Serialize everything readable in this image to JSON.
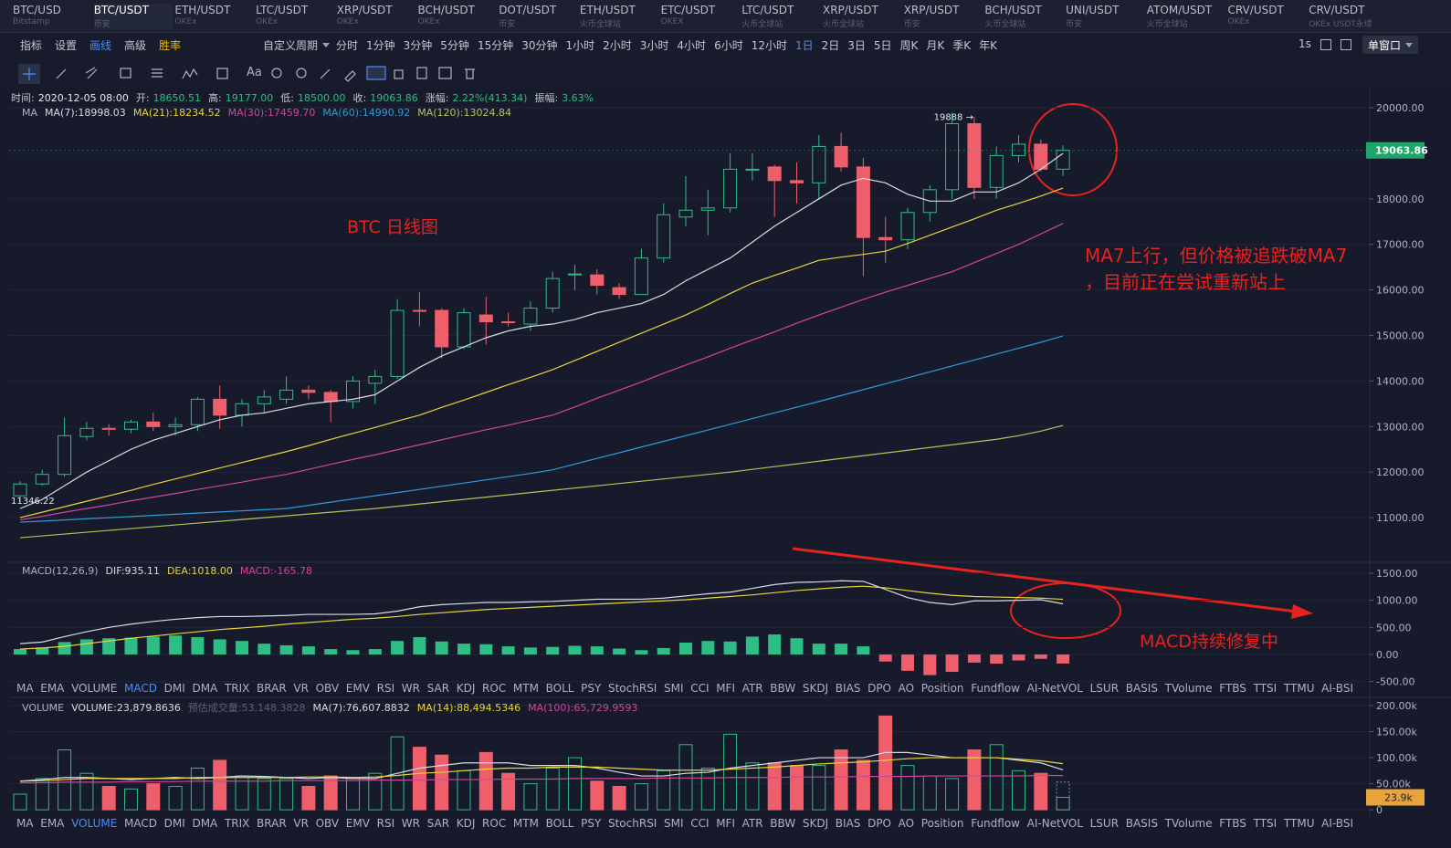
{
  "tabs": [
    {
      "name": "BTC/USD",
      "sub": "Bitstamp"
    },
    {
      "name": "BTC/USDT",
      "sub": "币安"
    },
    {
      "name": "ETH/USDT",
      "sub": "OKEx"
    },
    {
      "name": "LTC/USDT",
      "sub": "OKEx"
    },
    {
      "name": "XRP/USDT",
      "sub": "OKEx"
    },
    {
      "name": "BCH/USDT",
      "sub": "OKEx"
    },
    {
      "name": "DOT/USDT",
      "sub": "币安"
    },
    {
      "name": "ETH/USDT",
      "sub": "火币全球站"
    },
    {
      "name": "ETC/USDT",
      "sub": "OKEX"
    },
    {
      "name": "LTC/USDT",
      "sub": "火币全球站"
    },
    {
      "name": "XRP/USDT",
      "sub": "火币全球站"
    },
    {
      "name": "XRP/USDT",
      "sub": "币安"
    },
    {
      "name": "BCH/USDT",
      "sub": "火币全球站"
    },
    {
      "name": "UNI/USDT",
      "sub": "币安"
    },
    {
      "name": "ATOM/USDT",
      "sub": "火币全球站"
    },
    {
      "name": "CRV/USDT",
      "sub": "OKEx"
    },
    {
      "name": "CRV/USDT",
      "sub": "OKEx USDT永续"
    }
  ],
  "active_tab": 1,
  "toolbar": {
    "tools": [
      "指标",
      "设置",
      "画线",
      "高级",
      "胜率"
    ],
    "custom_period": "自定义周期",
    "periods": [
      "分时",
      "1分钟",
      "3分钟",
      "5分钟",
      "15分钟",
      "30分钟",
      "1小时",
      "2小时",
      "3小时",
      "4小时",
      "6小时",
      "12小时",
      "1日",
      "2日",
      "3日",
      "5日",
      "周K",
      "月K",
      "季K",
      "年K"
    ],
    "active_period": 12,
    "refresh": "1s",
    "window": "单窗口",
    "text_tool": "Aa"
  },
  "info": [
    {
      "label": "时间:",
      "value": "2020-12-05 08:00"
    },
    {
      "label": "开:",
      "value": "18650.51"
    },
    {
      "label": "高:",
      "value": "19177.00"
    },
    {
      "label": "低:",
      "value": "18500.00"
    },
    {
      "label": "收:",
      "value": "19063.86"
    },
    {
      "label": "涨幅:",
      "value": "2.22%(413.34)"
    },
    {
      "label": "振幅:",
      "value": "3.63%"
    }
  ],
  "main": {
    "label": "MA",
    "ylim": [
      10040,
      20361
    ],
    "yticks": [
      {
        "value": 20000,
        "label": "20000.00"
      },
      {
        "value": 19000,
        "label": "19000.00"
      },
      {
        "value": 18000,
        "label": "18000.00"
      },
      {
        "value": 17000,
        "label": "17000.00"
      },
      {
        "value": 16000,
        "label": "16000.00"
      },
      {
        "value": 15000,
        "label": "15000.00"
      },
      {
        "value": 14000,
        "label": "14000.00"
      },
      {
        "value": 13000,
        "label": "13000.00"
      },
      {
        "value": 12000,
        "label": "12000.00"
      },
      {
        "value": 11000,
        "label": "11000.00"
      }
    ],
    "grid": true,
    "up_color": "#2ebd85",
    "down_color": "#ef5f6b",
    "candles": {
      "open": [
        11480,
        11740,
        11950,
        12780,
        12960,
        12940,
        13100,
        13000,
        13040,
        13600,
        13250,
        13500,
        13600,
        13800,
        13750,
        13550,
        13950,
        14100,
        15550,
        15550,
        14750,
        15450,
        15300,
        15250,
        15600,
        16330,
        16330,
        16050,
        15900,
        16700,
        17600,
        17750,
        17800,
        18650,
        18700,
        18400,
        18350,
        19150,
        18700,
        17150,
        17100,
        17700,
        18200,
        19650,
        18250,
        18950,
        19200,
        18650.51
      ],
      "high": [
        11800,
        12050,
        13200,
        13100,
        13050,
        13150,
        13300,
        13200,
        13650,
        13900,
        13600,
        13800,
        14100,
        13900,
        13800,
        14100,
        14250,
        15800,
        15950,
        15600,
        15600,
        15850,
        15500,
        15750,
        16400,
        16550,
        16450,
        16150,
        16900,
        17900,
        18500,
        18200,
        19000,
        19000,
        18750,
        18800,
        19400,
        19450,
        18900,
        17600,
        17800,
        18300,
        19888,
        19800,
        19150,
        19400,
        19300,
        19177
      ],
      "low": [
        11346.22,
        11700,
        11900,
        12700,
        12800,
        12850,
        12900,
        12800,
        12900,
        12950,
        13000,
        13300,
        13500,
        13600,
        13100,
        13400,
        13500,
        14050,
        15200,
        14500,
        14700,
        14800,
        15200,
        15100,
        15500,
        16000,
        15900,
        15800,
        15900,
        16600,
        17400,
        17200,
        17700,
        18400,
        17600,
        17900,
        18000,
        18600,
        16300,
        16600,
        16900,
        17500,
        18000,
        18000,
        18000,
        18800,
        18600,
        18500
      ],
      "close": [
        11740,
        11950,
        12800,
        12960,
        12940,
        13100,
        13000,
        13040,
        13600,
        13250,
        13500,
        13650,
        13800,
        13750,
        13550,
        14000,
        14100,
        15550,
        15540,
        14750,
        15500,
        15300,
        15280,
        15600,
        16250,
        16350,
        16100,
        15900,
        16700,
        17650,
        17750,
        17800,
        18650,
        18650,
        18400,
        18350,
        19150,
        18700,
        17150,
        17100,
        17700,
        18200,
        19650,
        18250,
        18950,
        19200,
        18650,
        19063.86
      ]
    },
    "ma_lines": [
      {
        "legend": "MA(7):18998.03",
        "color": "#d9dce4",
        "values": [
          11200,
          11400,
          11700,
          12000,
          12250,
          12500,
          12700,
          12850,
          13000,
          13150,
          13250,
          13300,
          13400,
          13500,
          13550,
          13600,
          13700,
          14000,
          14300,
          14550,
          14750,
          14950,
          15100,
          15200,
          15250,
          15350,
          15500,
          15600,
          15700,
          15900,
          16200,
          16450,
          16700,
          17050,
          17400,
          17700,
          18000,
          18300,
          18450,
          18350,
          18100,
          17950,
          17950,
          18150,
          18150,
          18350,
          18650,
          18998.03
        ]
      },
      {
        "legend": "MA(21):18234.52",
        "color": "#e8d53a",
        "values": [
          11000,
          11120,
          11240,
          11360,
          11480,
          11600,
          11730,
          11850,
          11970,
          12090,
          12210,
          12330,
          12450,
          12580,
          12720,
          12850,
          12980,
          13120,
          13250,
          13420,
          13580,
          13750,
          13920,
          14080,
          14250,
          14450,
          14650,
          14850,
          15050,
          15250,
          15450,
          15680,
          15920,
          16150,
          16320,
          16480,
          16650,
          16720,
          16780,
          16850,
          17020,
          17200,
          17380,
          17560,
          17750,
          17900,
          18060,
          18234.52
        ]
      },
      {
        "legend": "MA(30):17459.70",
        "color": "#d2449e",
        "values": [
          10950,
          11030,
          11120,
          11200,
          11280,
          11370,
          11450,
          11530,
          11620,
          11700,
          11780,
          11870,
          11950,
          12060,
          12170,
          12280,
          12380,
          12490,
          12600,
          12710,
          12820,
          12930,
          13030,
          13140,
          13250,
          13430,
          13620,
          13800,
          13980,
          14170,
          14350,
          14530,
          14720,
          14900,
          15080,
          15270,
          15450,
          15620,
          15790,
          15950,
          16100,
          16250,
          16400,
          16600,
          16800,
          17000,
          17230,
          17459.7
        ]
      },
      {
        "legend": "MA(60):14990.92",
        "color": "#2f9bd8",
        "values": [
          10900,
          10925,
          10950,
          10975,
          11000,
          11025,
          11050,
          11075,
          11100,
          11125,
          11150,
          11175,
          11200,
          11270,
          11340,
          11410,
          11480,
          11550,
          11620,
          11690,
          11760,
          11830,
          11900,
          11970,
          12050,
          12175,
          12300,
          12425,
          12550,
          12675,
          12800,
          12925,
          13050,
          13175,
          13300,
          13425,
          13550,
          13680,
          13810,
          13940,
          14070,
          14200,
          14330,
          14460,
          14590,
          14720,
          14850,
          14990.92
        ]
      },
      {
        "legend": "MA(120):13024.84",
        "color": "#b5c45a",
        "values": [
          10560,
          10600,
          10640,
          10680,
          10720,
          10760,
          10800,
          10840,
          10880,
          10920,
          10960,
          11000,
          11040,
          11080,
          11120,
          11160,
          11200,
          11250,
          11300,
          11350,
          11400,
          11450,
          11500,
          11550,
          11600,
          11650,
          11700,
          11750,
          11800,
          11850,
          11900,
          11950,
          12000,
          12060,
          12120,
          12180,
          12240,
          12300,
          12360,
          12420,
          12480,
          12540,
          12600,
          12660,
          12720,
          12800,
          12900,
          13024.84
        ]
      }
    ],
    "high_label": "19888 →",
    "low_label": "11346.22",
    "price_tag": 19063.86,
    "price_tag_label": "19063.86"
  },
  "annotations": {
    "title": "BTC  日线图",
    "note_1": "MA7上行，但价格被追跌破MA7",
    "note_2": "，目前正在尝试重新站上",
    "macd_note": "MACD持续修复中",
    "color": "#e8231f"
  },
  "macd": {
    "title": "MACD(12,26,9)",
    "dif_label": "DIF:935.11",
    "dea_label": "DEA:1018.00",
    "macd_label": "MACD:-165.78",
    "ylim": [
      -471,
      1684
    ],
    "yticks": [
      {
        "value": 1500,
        "label": "1500.00"
      },
      {
        "value": 1000,
        "label": "1000.00"
      },
      {
        "value": 500,
        "label": "500.00"
      },
      {
        "value": 0,
        "label": "0.00"
      },
      {
        "value": -500,
        "label": "-500.00"
      }
    ],
    "dif": [
      200,
      230,
      330,
      420,
      500,
      560,
      610,
      650,
      680,
      700,
      700,
      710,
      720,
      740,
      740,
      740,
      750,
      800,
      880,
      920,
      940,
      960,
      960,
      970,
      980,
      1000,
      1020,
      1020,
      1020,
      1040,
      1080,
      1120,
      1150,
      1220,
      1290,
      1330,
      1340,
      1360,
      1350,
      1200,
      1050,
      960,
      920,
      990,
      990,
      1000,
      1010,
      935.11
    ],
    "dea": [
      100,
      120,
      150,
      200,
      250,
      300,
      340,
      380,
      420,
      460,
      490,
      520,
      560,
      590,
      620,
      650,
      670,
      700,
      740,
      770,
      800,
      830,
      850,
      870,
      890,
      910,
      930,
      950,
      970,
      990,
      1010,
      1040,
      1070,
      1100,
      1140,
      1180,
      1210,
      1240,
      1260,
      1230,
      1180,
      1130,
      1090,
      1070,
      1060,
      1050,
      1040,
      1018
    ],
    "hist": [
      100,
      130,
      230,
      280,
      300,
      310,
      330,
      350,
      320,
      280,
      250,
      200,
      170,
      150,
      100,
      80,
      100,
      250,
      320,
      240,
      200,
      190,
      150,
      130,
      140,
      160,
      150,
      110,
      80,
      120,
      220,
      250,
      240,
      330,
      370,
      300,
      200,
      200,
      150,
      -130,
      -300,
      -380,
      -320,
      -150,
      -170,
      -110,
      -80,
      -165.78
    ]
  },
  "volume": {
    "title": "VOLUME",
    "vol_label": "VOLUME:23,879.8636",
    "pred_label": "预估成交量:53,148.3828",
    "ma7_label": "MA(7):76,607.8832",
    "ma14_label": "MA(14):88,494.5346",
    "ma100_label": "MA(100):65,729.9593",
    "ylim": [
      -5000,
      214000
    ],
    "yticks": [
      {
        "value": 200000,
        "label": "200.00k"
      },
      {
        "value": 150000,
        "label": "150.00k"
      },
      {
        "value": 100000,
        "label": "100.00k"
      },
      {
        "value": 50000,
        "label": "50.00k"
      },
      0
    ],
    "values": [
      30000,
      60000,
      115000,
      70000,
      45000,
      40000,
      50000,
      45000,
      80000,
      95000,
      65000,
      60000,
      60000,
      45000,
      65000,
      60000,
      70000,
      140000,
      120000,
      105000,
      75000,
      110000,
      70000,
      50000,
      80000,
      100000,
      55000,
      45000,
      50000,
      75000,
      125000,
      80000,
      145000,
      90000,
      90000,
      85000,
      85000,
      115000,
      95000,
      180000,
      85000,
      65000,
      60000,
      115000,
      125000,
      75000,
      70000,
      23879.8636
    ],
    "predicted": 53148.3828,
    "tag": 23879.8636,
    "tag_label": "23.9k",
    "ma_lines": [
      {
        "color": "#d9dce4",
        "values": [
          55000,
          58000,
          62000,
          62000,
          60000,
          58000,
          60000,
          62000,
          60000,
          62000,
          65000,
          64000,
          62000,
          60000,
          62000,
          60000,
          60000,
          70000,
          80000,
          85000,
          90000,
          90000,
          90000,
          85000,
          85000,
          85000,
          80000,
          72000,
          65000,
          65000,
          70000,
          72000,
          80000,
          85000,
          90000,
          95000,
          100000,
          100000,
          100000,
          110000,
          110000,
          105000,
          100000,
          100000,
          100000,
          95000,
          90000,
          76607.8832
        ]
      },
      {
        "color": "#e8d53a",
        "values": [
          55000,
          56000,
          58000,
          60000,
          60000,
          60000,
          60000,
          60000,
          62000,
          62000,
          62000,
          62000,
          62000,
          63000,
          63000,
          62000,
          63000,
          66000,
          70000,
          72000,
          75000,
          78000,
          80000,
          80000,
          82000,
          82000,
          82000,
          80000,
          78000,
          76000,
          76000,
          76000,
          78000,
          80000,
          82000,
          85000,
          88000,
          90000,
          92000,
          95000,
          98000,
          100000,
          100000,
          100000,
          100000,
          97000,
          94000,
          88494.5346
        ]
      },
      {
        "color": "#d2449e",
        "values": [
          52000,
          52000,
          53000,
          53000,
          53000,
          54000,
          54000,
          54000,
          55000,
          55000,
          55000,
          55000,
          56000,
          56000,
          56000,
          56000,
          57000,
          57000,
          57000,
          58000,
          58000,
          58000,
          59000,
          59000,
          59000,
          60000,
          60000,
          60000,
          60000,
          61000,
          61000,
          61000,
          62000,
          62000,
          62000,
          63000,
          63000,
          63000,
          64000,
          64000,
          64000,
          65000,
          65000,
          65000,
          65000,
          65000,
          66000,
          65729.9593
        ]
      }
    ]
  },
  "indicator_tabs": [
    "MA",
    "EMA",
    "VOLUME",
    "MACD",
    "DMI",
    "DMA",
    "TRIX",
    "BRAR",
    "VR",
    "OBV",
    "EMV",
    "RSI",
    "WR",
    "SAR",
    "KDJ",
    "ROC",
    "MTM",
    "BOLL",
    "PSY",
    "StochRSI",
    "SMI",
    "CCI",
    "MFI",
    "ATR",
    "BBW",
    "SKDJ",
    "BIAS",
    "DPO",
    "AO",
    "Position",
    "Fundflow",
    "AI-NetVOL",
    "LSUR",
    "BASIS",
    "TVolume",
    "FTBS",
    "TTSI",
    "TTMU",
    "AI-BSI"
  ],
  "macd_active_tab": 3,
  "volume_active_tab": 2
}
